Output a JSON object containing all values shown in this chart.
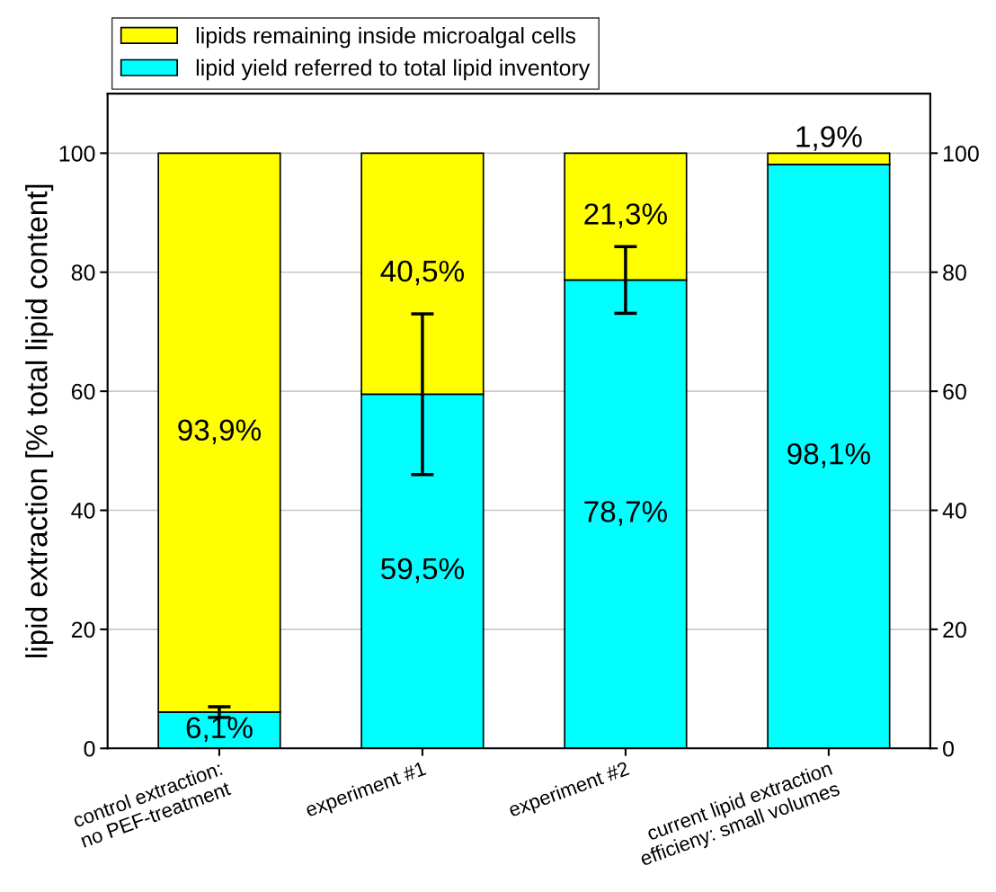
{
  "chart_data": {
    "type": "bar",
    "stacked": true,
    "ylabel": "lipid extraction [% total lipid content]",
    "categories": [
      "control extraction:\nno PEF-treatment",
      "experiment #1",
      "experiment #2",
      "current lipid extraction\nefficieny: small volumes"
    ],
    "series": [
      {
        "name": "lipid yield referred to total lipid inventory",
        "color": "#00ffff",
        "values": [
          6.1,
          59.5,
          78.7,
          98.1
        ],
        "errors": [
          0.9,
          13.5,
          5.6,
          null
        ],
        "value_labels": [
          "6,1%",
          "59,5%",
          "78,7%",
          "98,1%"
        ]
      },
      {
        "name": "lipids remaining inside microalgal cells",
        "color": "#ffff00",
        "values": [
          93.9,
          40.5,
          21.3,
          1.9
        ],
        "value_labels": [
          "93,9%",
          "40,5%",
          "21,3%",
          "1,9%"
        ]
      }
    ],
    "ylim": [
      0,
      110
    ],
    "yticks": [
      0,
      20,
      40,
      60,
      80,
      100
    ],
    "y2lim": [
      0,
      110
    ],
    "y2ticks": [
      0,
      20,
      40,
      60,
      80,
      100
    ],
    "grid": "y",
    "legend": "top left"
  }
}
